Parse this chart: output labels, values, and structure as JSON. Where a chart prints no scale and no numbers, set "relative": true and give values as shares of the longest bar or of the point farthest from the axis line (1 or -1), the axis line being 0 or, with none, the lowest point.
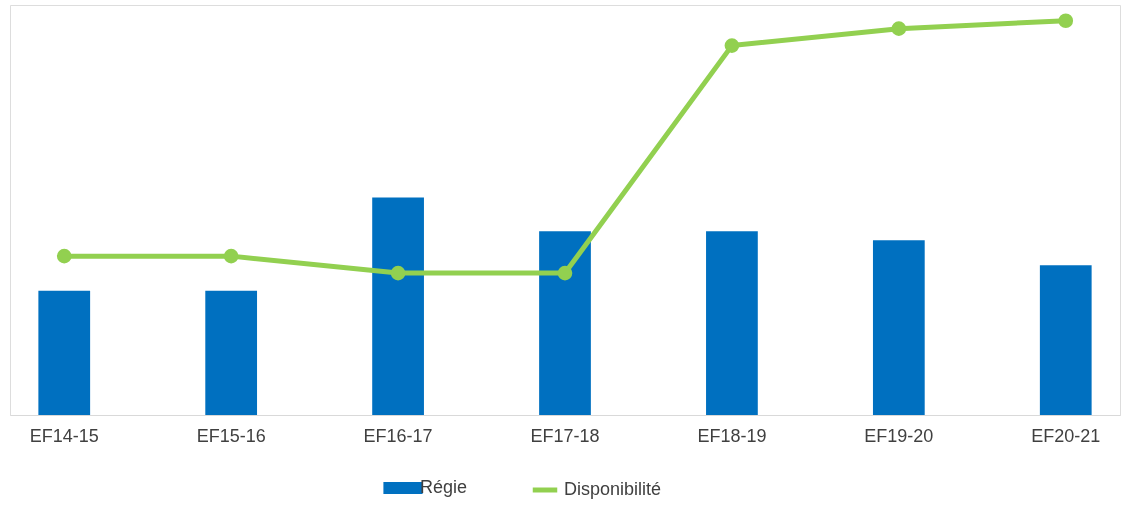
{
  "chart_data": {
    "type": "bar",
    "relative": true,
    "categories": [
      "EF14-15",
      "EF15-16",
      "EF16-17",
      "EF17-18",
      "EF18-19",
      "EF19-20",
      "EF20-21"
    ],
    "series": [
      {
        "name": "Régie",
        "color": "#0070c0",
        "values": [
          0.315,
          0.315,
          0.552,
          0.466,
          0.466,
          0.443,
          0.38
        ]
      },
      {
        "name": "Disponibilité",
        "type": "line",
        "color": "#92d050",
        "values": [
          0.403,
          0.403,
          0.36,
          0.36,
          0.937,
          0.98,
          1
        ]
      }
    ],
    "legend": "bottom",
    "marker": "circle",
    "line_style": "solid"
  }
}
